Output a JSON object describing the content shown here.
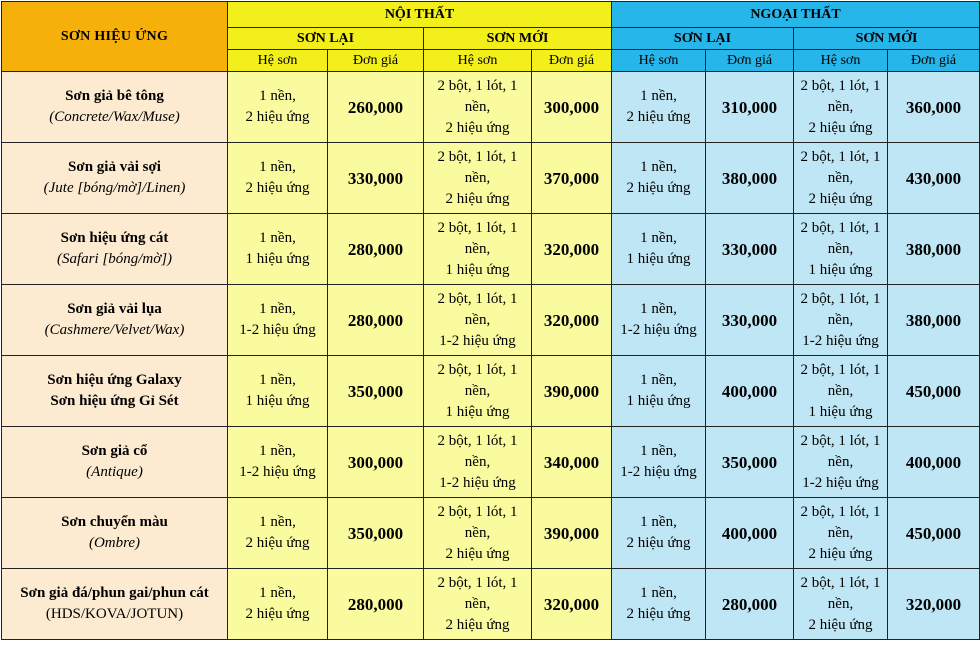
{
  "header": {
    "category": "SƠN HIỆU ỨNG",
    "interior": "NỘI THẤT",
    "exterior": "NGOẠI THẤT",
    "repaint": "SƠN LẠI",
    "new": "SƠN MỚI",
    "system": "Hệ sơn",
    "unit_price": "Đơn giá"
  },
  "rows": [
    {
      "name": "Sơn giả bê tông",
      "sub": "(Concrete/Wax/Muse)",
      "sub_style": "italic",
      "int_re": [
        "1 nền,",
        "2 hiệu ứng"
      ],
      "int_re_price": "260,000",
      "int_new": [
        "2 bột, 1 lót, 1",
        "nền,",
        "2 hiệu ứng"
      ],
      "int_new_price": "300,000",
      "ext_re": [
        "1 nền,",
        "2 hiệu ứng"
      ],
      "ext_re_price": "310,000",
      "ext_new": [
        "2 bột, 1 lót, 1",
        "nền,",
        "2 hiệu ứng"
      ],
      "ext_new_price": "360,000"
    },
    {
      "name": "Sơn giả vải sợi",
      "sub": "(Jute [bóng/mờ]/Linen)",
      "sub_style": "italic",
      "int_re": [
        "1 nền,",
        "2 hiệu ứng"
      ],
      "int_re_price": "330,000",
      "int_new": [
        "2 bột, 1 lót, 1",
        "nền,",
        "2 hiệu ứng"
      ],
      "int_new_price": "370,000",
      "ext_re": [
        "1 nền,",
        "2 hiệu ứng"
      ],
      "ext_re_price": "380,000",
      "ext_new": [
        "2 bột, 1 lót, 1",
        "nền,",
        "2 hiệu ứng"
      ],
      "ext_new_price": "430,000"
    },
    {
      "name": "Sơn hiệu ứng cát",
      "sub": "(Safari [bóng/mờ])",
      "sub_style": "italic",
      "int_re": [
        "1 nền,",
        "1 hiệu ứng"
      ],
      "int_re_price": "280,000",
      "int_new": [
        "2 bột, 1 lót, 1",
        "nền,",
        "1 hiệu ứng"
      ],
      "int_new_price": "320,000",
      "ext_re": [
        "1 nền,",
        "1 hiệu ứng"
      ],
      "ext_re_price": "330,000",
      "ext_new": [
        "2 bột, 1 lót, 1",
        "nền,",
        "1 hiệu ứng"
      ],
      "ext_new_price": "380,000"
    },
    {
      "name": "Sơn giả vải lụa",
      "sub": "(Cashmere/Velvet/Wax)",
      "sub_style": "italic",
      "int_re": [
        "1 nền,",
        "1-2 hiệu ứng"
      ],
      "int_re_price": "280,000",
      "int_new": [
        "2 bột, 1 lót, 1",
        "nền,",
        "1-2 hiệu ứng"
      ],
      "int_new_price": "320,000",
      "ext_re": [
        "1 nền,",
        "1-2 hiệu ứng"
      ],
      "ext_re_price": "330,000",
      "ext_new": [
        "2 bột, 1 lót, 1",
        "nền,",
        "1-2 hiệu ứng"
      ],
      "ext_new_price": "380,000"
    },
    {
      "name": "Sơn hiệu ứng Galaxy",
      "sub": "Sơn hiệu ứng Gỉ Sét",
      "sub_style": "bold",
      "int_re": [
        "1 nền,",
        "1 hiệu ứng"
      ],
      "int_re_price": "350,000",
      "int_new": [
        "2 bột, 1 lót, 1",
        "nền,",
        "1 hiệu ứng"
      ],
      "int_new_price": "390,000",
      "ext_re": [
        "1 nền,",
        "1 hiệu ứng"
      ],
      "ext_re_price": "400,000",
      "ext_new": [
        "2 bột, 1 lót, 1",
        "nền,",
        "1 hiệu ứng"
      ],
      "ext_new_price": "450,000"
    },
    {
      "name": "Sơn giả cổ",
      "sub": "(Antique)",
      "sub_style": "italic",
      "int_re": [
        "1 nền,",
        "1-2 hiệu ứng"
      ],
      "int_re_price": "300,000",
      "int_new": [
        "2 bột, 1 lót, 1",
        "nền,",
        "1-2 hiệu ứng"
      ],
      "int_new_price": "340,000",
      "ext_re": [
        "1 nền,",
        "1-2 hiệu ứng"
      ],
      "ext_re_price": "350,000",
      "ext_new": [
        "2 bột, 1 lót, 1",
        "nền,",
        "1-2 hiệu ứng"
      ],
      "ext_new_price": "400,000"
    },
    {
      "name": "Sơn chuyển màu",
      "sub": "(Ombre)",
      "sub_style": "italic",
      "int_re": [
        "1 nền,",
        "2 hiệu ứng"
      ],
      "int_re_price": "350,000",
      "int_new": [
        "2 bột, 1 lót, 1",
        "nền,",
        "2 hiệu ứng"
      ],
      "int_new_price": "390,000",
      "ext_re": [
        "1 nền,",
        "2 hiệu ứng"
      ],
      "ext_re_price": "400,000",
      "ext_new": [
        "2 bột, 1 lót, 1",
        "nền,",
        "2 hiệu ứng"
      ],
      "ext_new_price": "450,000"
    },
    {
      "name": "Sơn giả đá/phun gai/phun cát",
      "sub": "(HDS/KOVA/JOTUN)",
      "sub_style": "plain",
      "int_re": [
        "1 nền,",
        "2 hiệu ứng"
      ],
      "int_re_price": "280,000",
      "int_new": [
        "2 bột, 1 lót, 1",
        "nền,",
        "2 hiệu ứng"
      ],
      "int_new_price": "320,000",
      "ext_re": [
        "1 nền,",
        "2 hiệu ứng"
      ],
      "ext_re_price": "280,000",
      "ext_new": [
        "2 bột, 1 lót, 1",
        "nền,",
        "2 hiệu ứng"
      ],
      "ext_new_price": "320,000"
    }
  ]
}
